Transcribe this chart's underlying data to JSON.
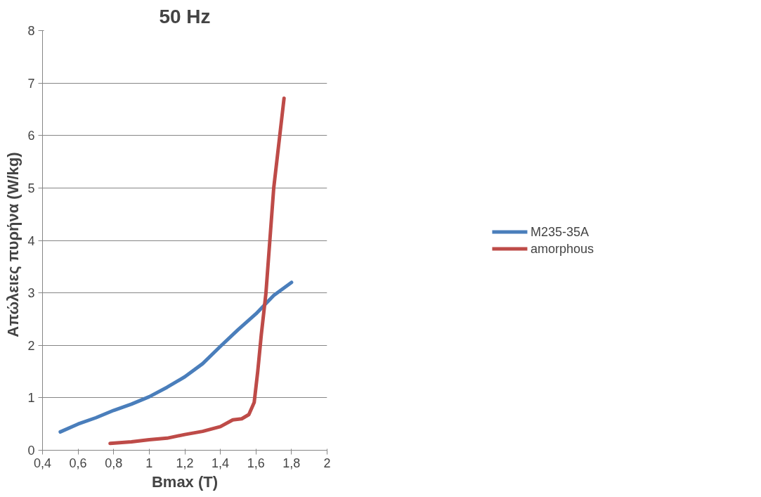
{
  "chart_data": {
    "type": "line",
    "title": "50 Hz",
    "xlabel": "Bmax (T)",
    "ylabel": "Απώλειες  πυρήνα  (W/kg)",
    "xlim": [
      0.4,
      2
    ],
    "xticks": [
      {
        "value": 0.4,
        "label": "0,4"
      },
      {
        "value": 0.6,
        "label": "0,6"
      },
      {
        "value": 0.8,
        "label": "0,8"
      },
      1,
      {
        "value": 1.2,
        "label": "1,2"
      },
      {
        "value": 1.4,
        "label": "1,4"
      },
      {
        "value": 1.6,
        "label": "1,6"
      },
      {
        "value": 1.8,
        "label": "1,8"
      },
      2
    ],
    "ylim": [
      0,
      8
    ],
    "yticks": [
      0,
      1,
      2,
      3,
      4,
      5,
      6,
      7,
      8
    ],
    "grid": "y",
    "legend": "right",
    "line_style": "solid",
    "marker": "none",
    "series": [
      {
        "name": "M235-35A",
        "color": "#4a7ebb",
        "x": [
          0.5,
          0.6,
          0.7,
          0.8,
          0.9,
          1.0,
          1.1,
          1.2,
          1.3,
          1.4,
          1.5,
          1.6,
          1.7,
          1.8
        ],
        "values": [
          0.35,
          0.5,
          0.62,
          0.76,
          0.88,
          1.02,
          1.2,
          1.4,
          1.65,
          1.98,
          2.3,
          2.6,
          2.95,
          3.2
        ]
      },
      {
        "name": "amorphous",
        "color": "#be4b48",
        "x": [
          0.78,
          0.9,
          1.0,
          1.1,
          1.2,
          1.3,
          1.4,
          1.47,
          1.52,
          1.56,
          1.59,
          1.61,
          1.63,
          1.656,
          1.7,
          1.758
        ],
        "values": [
          0.13,
          0.16,
          0.2,
          0.23,
          0.3,
          0.36,
          0.45,
          0.58,
          0.6,
          0.68,
          0.91,
          1.5,
          2.2,
          2.99,
          5.0,
          6.71
        ]
      }
    ]
  }
}
